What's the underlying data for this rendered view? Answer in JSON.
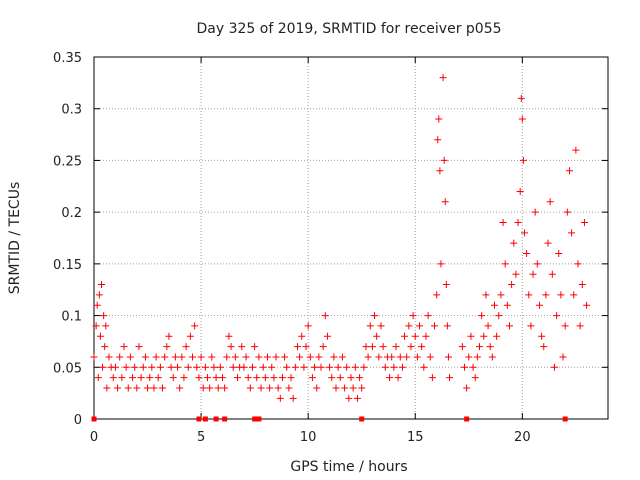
{
  "chart_data": {
    "type": "scatter",
    "title": "Day 325 of 2019, SRMTID for receiver p055",
    "xlabel": "GPS time / hours",
    "ylabel": "SRMTID / TECUs",
    "xlim": [
      0,
      24
    ],
    "ylim": [
      0,
      0.35
    ],
    "xticks": [
      0,
      5,
      10,
      15,
      20
    ],
    "yticks": [
      0,
      0.05,
      0.1,
      0.15,
      0.2,
      0.25,
      0.3,
      0.35
    ],
    "xtick_labels": [
      "0",
      "5",
      "10",
      "15",
      "20"
    ],
    "ytick_labels": [
      "0",
      "0.05",
      "0.1",
      "0.15",
      "0.2",
      "0.25",
      "0.3",
      "0.35"
    ],
    "grid": true,
    "marker": "+",
    "color": "#ff0000",
    "series": [
      {
        "name": "SRMTID",
        "points": [
          [
            0.0,
            0.06
          ],
          [
            0.1,
            0.09
          ],
          [
            0.15,
            0.11
          ],
          [
            0.2,
            0.04
          ],
          [
            0.25,
            0.12
          ],
          [
            0.3,
            0.08
          ],
          [
            0.35,
            0.13
          ],
          [
            0.4,
            0.05
          ],
          [
            0.45,
            0.1
          ],
          [
            0.5,
            0.07
          ],
          [
            0.55,
            0.09
          ],
          [
            0.6,
            0.03
          ],
          [
            0.7,
            0.06
          ],
          [
            0.8,
            0.05
          ],
          [
            0.9,
            0.04
          ],
          [
            1.0,
            0.05
          ],
          [
            1.1,
            0.03
          ],
          [
            1.2,
            0.06
          ],
          [
            1.3,
            0.04
          ],
          [
            1.4,
            0.07
          ],
          [
            1.5,
            0.05
          ],
          [
            1.6,
            0.03
          ],
          [
            1.7,
            0.06
          ],
          [
            1.8,
            0.04
          ],
          [
            1.9,
            0.05
          ],
          [
            2.0,
            0.03
          ],
          [
            2.1,
            0.07
          ],
          [
            2.2,
            0.04
          ],
          [
            2.3,
            0.05
          ],
          [
            2.4,
            0.06
          ],
          [
            2.5,
            0.03
          ],
          [
            2.6,
            0.04
          ],
          [
            2.7,
            0.05
          ],
          [
            2.8,
            0.03
          ],
          [
            2.9,
            0.06
          ],
          [
            3.0,
            0.04
          ],
          [
            3.1,
            0.05
          ],
          [
            3.2,
            0.03
          ],
          [
            3.3,
            0.06
          ],
          [
            3.4,
            0.07
          ],
          [
            3.5,
            0.08
          ],
          [
            3.6,
            0.05
          ],
          [
            3.7,
            0.04
          ],
          [
            3.8,
            0.06
          ],
          [
            3.9,
            0.05
          ],
          [
            4.0,
            0.03
          ],
          [
            4.1,
            0.06
          ],
          [
            4.2,
            0.04
          ],
          [
            4.3,
            0.07
          ],
          [
            4.4,
            0.05
          ],
          [
            4.5,
            0.08
          ],
          [
            4.6,
            0.06
          ],
          [
            4.7,
            0.09
          ],
          [
            4.8,
            0.05
          ],
          [
            4.9,
            0.04
          ],
          [
            5.0,
            0.06
          ],
          [
            5.1,
            0.03
          ],
          [
            5.2,
            0.05
          ],
          [
            5.3,
            0.04
          ],
          [
            5.4,
            0.03
          ],
          [
            5.5,
            0.06
          ],
          [
            5.6,
            0.05
          ],
          [
            5.7,
            0.04
          ],
          [
            5.8,
            0.03
          ],
          [
            5.9,
            0.05
          ],
          [
            6.0,
            0.04
          ],
          [
            6.1,
            0.03
          ],
          [
            6.2,
            0.06
          ],
          [
            6.3,
            0.08
          ],
          [
            6.4,
            0.07
          ],
          [
            6.5,
            0.05
          ],
          [
            6.6,
            0.06
          ],
          [
            6.7,
            0.04
          ],
          [
            6.8,
            0.05
          ],
          [
            6.9,
            0.07
          ],
          [
            7.0,
            0.05
          ],
          [
            7.1,
            0.06
          ],
          [
            7.2,
            0.04
          ],
          [
            7.3,
            0.03
          ],
          [
            7.4,
            0.05
          ],
          [
            7.5,
            0.07
          ],
          [
            7.6,
            0.04
          ],
          [
            7.7,
            0.06
          ],
          [
            7.8,
            0.03
          ],
          [
            7.9,
            0.05
          ],
          [
            8.0,
            0.04
          ],
          [
            8.1,
            0.06
          ],
          [
            8.2,
            0.03
          ],
          [
            8.3,
            0.05
          ],
          [
            8.4,
            0.04
          ],
          [
            8.5,
            0.06
          ],
          [
            8.6,
            0.03
          ],
          [
            8.7,
            0.02
          ],
          [
            8.8,
            0.04
          ],
          [
            8.9,
            0.06
          ],
          [
            9.0,
            0.05
          ],
          [
            9.1,
            0.03
          ],
          [
            9.2,
            0.04
          ],
          [
            9.3,
            0.02
          ],
          [
            9.4,
            0.05
          ],
          [
            9.5,
            0.07
          ],
          [
            9.6,
            0.06
          ],
          [
            9.7,
            0.08
          ],
          [
            9.8,
            0.05
          ],
          [
            9.9,
            0.07
          ],
          [
            10.0,
            0.09
          ],
          [
            10.1,
            0.06
          ],
          [
            10.2,
            0.04
          ],
          [
            10.3,
            0.05
          ],
          [
            10.4,
            0.03
          ],
          [
            10.5,
            0.06
          ],
          [
            10.6,
            0.05
          ],
          [
            10.7,
            0.07
          ],
          [
            10.8,
            0.1
          ],
          [
            10.9,
            0.08
          ],
          [
            11.0,
            0.05
          ],
          [
            11.1,
            0.04
          ],
          [
            11.2,
            0.06
          ],
          [
            11.3,
            0.03
          ],
          [
            11.4,
            0.05
          ],
          [
            11.5,
            0.04
          ],
          [
            11.6,
            0.06
          ],
          [
            11.7,
            0.03
          ],
          [
            11.8,
            0.05
          ],
          [
            11.9,
            0.02
          ],
          [
            12.0,
            0.04
          ],
          [
            12.1,
            0.03
          ],
          [
            12.2,
            0.05
          ],
          [
            12.3,
            0.02
          ],
          [
            12.4,
            0.04
          ],
          [
            12.5,
            0.03
          ],
          [
            12.6,
            0.05
          ],
          [
            12.7,
            0.07
          ],
          [
            12.8,
            0.06
          ],
          [
            12.9,
            0.09
          ],
          [
            13.0,
            0.07
          ],
          [
            13.1,
            0.1
          ],
          [
            13.2,
            0.08
          ],
          [
            13.3,
            0.06
          ],
          [
            13.4,
            0.09
          ],
          [
            13.5,
            0.07
          ],
          [
            13.6,
            0.05
          ],
          [
            13.7,
            0.06
          ],
          [
            13.8,
            0.04
          ],
          [
            13.9,
            0.06
          ],
          [
            14.0,
            0.05
          ],
          [
            14.1,
            0.07
          ],
          [
            14.2,
            0.04
          ],
          [
            14.3,
            0.06
          ],
          [
            14.4,
            0.05
          ],
          [
            14.5,
            0.08
          ],
          [
            14.6,
            0.06
          ],
          [
            14.7,
            0.09
          ],
          [
            14.8,
            0.07
          ],
          [
            14.9,
            0.1
          ],
          [
            15.0,
            0.08
          ],
          [
            15.1,
            0.06
          ],
          [
            15.2,
            0.09
          ],
          [
            15.3,
            0.07
          ],
          [
            15.4,
            0.05
          ],
          [
            15.5,
            0.08
          ],
          [
            15.6,
            0.1
          ],
          [
            15.7,
            0.06
          ],
          [
            15.8,
            0.04
          ],
          [
            15.9,
            0.09
          ],
          [
            16.0,
            0.12
          ],
          [
            16.05,
            0.27
          ],
          [
            16.1,
            0.29
          ],
          [
            16.15,
            0.24
          ],
          [
            16.2,
            0.15
          ],
          [
            16.3,
            0.33
          ],
          [
            16.35,
            0.25
          ],
          [
            16.4,
            0.21
          ],
          [
            16.45,
            0.13
          ],
          [
            16.5,
            0.09
          ],
          [
            16.55,
            0.06
          ],
          [
            16.6,
            0.04
          ],
          [
            17.2,
            0.07
          ],
          [
            17.3,
            0.05
          ],
          [
            17.4,
            0.03
          ],
          [
            17.5,
            0.06
          ],
          [
            17.6,
            0.08
          ],
          [
            17.7,
            0.05
          ],
          [
            17.8,
            0.04
          ],
          [
            17.9,
            0.06
          ],
          [
            18.0,
            0.07
          ],
          [
            18.1,
            0.1
          ],
          [
            18.2,
            0.08
          ],
          [
            18.3,
            0.12
          ],
          [
            18.4,
            0.09
          ],
          [
            18.5,
            0.07
          ],
          [
            18.6,
            0.06
          ],
          [
            18.7,
            0.11
          ],
          [
            18.8,
            0.08
          ],
          [
            18.9,
            0.1
          ],
          [
            19.0,
            0.12
          ],
          [
            19.1,
            0.19
          ],
          [
            19.2,
            0.15
          ],
          [
            19.3,
            0.11
          ],
          [
            19.4,
            0.09
          ],
          [
            19.5,
            0.13
          ],
          [
            19.6,
            0.17
          ],
          [
            19.7,
            0.14
          ],
          [
            19.8,
            0.19
          ],
          [
            19.9,
            0.22
          ],
          [
            19.95,
            0.31
          ],
          [
            20.0,
            0.29
          ],
          [
            20.05,
            0.25
          ],
          [
            20.1,
            0.18
          ],
          [
            20.2,
            0.16
          ],
          [
            20.3,
            0.12
          ],
          [
            20.4,
            0.09
          ],
          [
            20.5,
            0.14
          ],
          [
            20.6,
            0.2
          ],
          [
            20.7,
            0.15
          ],
          [
            20.8,
            0.11
          ],
          [
            20.9,
            0.08
          ],
          [
            21.0,
            0.07
          ],
          [
            21.1,
            0.12
          ],
          [
            21.2,
            0.17
          ],
          [
            21.3,
            0.21
          ],
          [
            21.4,
            0.14
          ],
          [
            21.5,
            0.05
          ],
          [
            21.6,
            0.1
          ],
          [
            21.7,
            0.16
          ],
          [
            21.8,
            0.12
          ],
          [
            21.9,
            0.06
          ],
          [
            22.0,
            0.09
          ],
          [
            22.1,
            0.2
          ],
          [
            22.2,
            0.24
          ],
          [
            22.3,
            0.18
          ],
          [
            22.4,
            0.12
          ],
          [
            22.5,
            0.26
          ],
          [
            22.6,
            0.15
          ],
          [
            22.7,
            0.09
          ],
          [
            22.8,
            0.13
          ],
          [
            22.9,
            0.19
          ],
          [
            23.0,
            0.11
          ]
        ]
      }
    ],
    "baseline_markers": [
      0.0,
      4.9,
      5.2,
      5.7,
      6.1,
      7.5,
      7.7,
      12.5,
      17.4,
      22.0
    ]
  }
}
